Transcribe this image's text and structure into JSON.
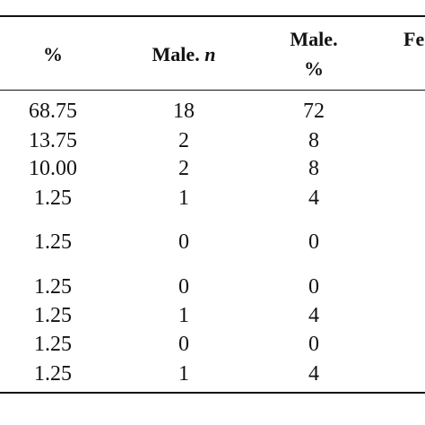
{
  "table": {
    "headers": {
      "col1": "%",
      "col2_main": "Male.",
      "col2_italic": "n",
      "col3_line1": "Male.",
      "col3_line2": "%",
      "col4": "Fe"
    },
    "rows": [
      {
        "pct": "68.75",
        "male_n": "18",
        "male_pct": "72"
      },
      {
        "pct": "13.75",
        "male_n": "2",
        "male_pct": "8"
      },
      {
        "pct": "10.00",
        "male_n": "2",
        "male_pct": "8"
      },
      {
        "pct": "1.25",
        "male_n": "1",
        "male_pct": "4"
      },
      {
        "pct": "1.25",
        "male_n": "0",
        "male_pct": "0"
      },
      {
        "pct": "1.25",
        "male_n": "0",
        "male_pct": "0"
      },
      {
        "pct": "1.25",
        "male_n": "1",
        "male_pct": "4"
      },
      {
        "pct": "1.25",
        "male_n": "0",
        "male_pct": "0"
      },
      {
        "pct": "1.25",
        "male_n": "1",
        "male_pct": "4"
      }
    ]
  }
}
